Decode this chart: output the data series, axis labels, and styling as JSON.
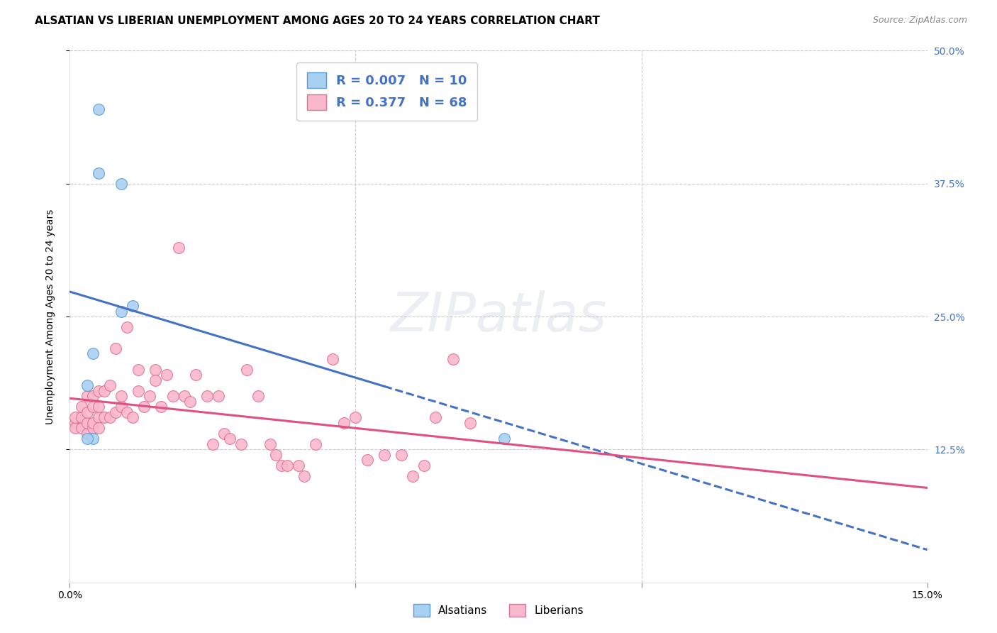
{
  "title": "ALSATIAN VS LIBERIAN UNEMPLOYMENT AMONG AGES 20 TO 24 YEARS CORRELATION CHART",
  "source": "Source: ZipAtlas.com",
  "ylabel": "Unemployment Among Ages 20 to 24 years",
  "x_min": 0.0,
  "x_max": 0.15,
  "y_min": 0.0,
  "y_max": 0.5,
  "alsatian_color": "#A8D0F0",
  "liberian_color": "#F9B8CC",
  "alsatian_edge": "#5B9BD5",
  "liberian_edge": "#E07090",
  "trend_alsatian_color": "#4472C4",
  "trend_liberian_color": "#E05080",
  "R_alsatian": 0.007,
  "N_alsatian": 10,
  "R_liberian": 0.377,
  "N_liberian": 68,
  "background_color": "#FFFFFF",
  "grid_color": "#CCCCCC",
  "watermark": "ZIPatlas",
  "alsatian_x": [
    0.005,
    0.005,
    0.009,
    0.009,
    0.011,
    0.004,
    0.004,
    0.003,
    0.003,
    0.076
  ],
  "alsatian_y": [
    0.445,
    0.385,
    0.375,
    0.255,
    0.26,
    0.215,
    0.135,
    0.185,
    0.135,
    0.135
  ],
  "liberian_x": [
    0.001,
    0.001,
    0.001,
    0.002,
    0.002,
    0.002,
    0.003,
    0.003,
    0.003,
    0.003,
    0.004,
    0.004,
    0.004,
    0.004,
    0.005,
    0.005,
    0.005,
    0.005,
    0.006,
    0.006,
    0.007,
    0.007,
    0.008,
    0.008,
    0.009,
    0.009,
    0.01,
    0.01,
    0.011,
    0.012,
    0.012,
    0.013,
    0.014,
    0.015,
    0.015,
    0.016,
    0.017,
    0.018,
    0.019,
    0.02,
    0.021,
    0.022,
    0.024,
    0.025,
    0.026,
    0.027,
    0.028,
    0.03,
    0.031,
    0.033,
    0.035,
    0.036,
    0.037,
    0.038,
    0.04,
    0.041,
    0.043,
    0.046,
    0.048,
    0.05,
    0.052,
    0.055,
    0.058,
    0.06,
    0.062,
    0.064,
    0.067,
    0.07
  ],
  "liberian_y": [
    0.15,
    0.145,
    0.155,
    0.145,
    0.155,
    0.165,
    0.14,
    0.15,
    0.16,
    0.175,
    0.145,
    0.15,
    0.175,
    0.165,
    0.155,
    0.145,
    0.165,
    0.18,
    0.155,
    0.18,
    0.155,
    0.185,
    0.22,
    0.16,
    0.165,
    0.175,
    0.24,
    0.16,
    0.155,
    0.18,
    0.2,
    0.165,
    0.175,
    0.2,
    0.19,
    0.165,
    0.195,
    0.175,
    0.315,
    0.175,
    0.17,
    0.195,
    0.175,
    0.13,
    0.175,
    0.14,
    0.135,
    0.13,
    0.2,
    0.175,
    0.13,
    0.12,
    0.11,
    0.11,
    0.11,
    0.1,
    0.13,
    0.21,
    0.15,
    0.155,
    0.115,
    0.12,
    0.12,
    0.1,
    0.11,
    0.155,
    0.21,
    0.15
  ],
  "title_fontsize": 11,
  "axis_label_fontsize": 10,
  "tick_fontsize": 10,
  "legend_fontsize": 13
}
